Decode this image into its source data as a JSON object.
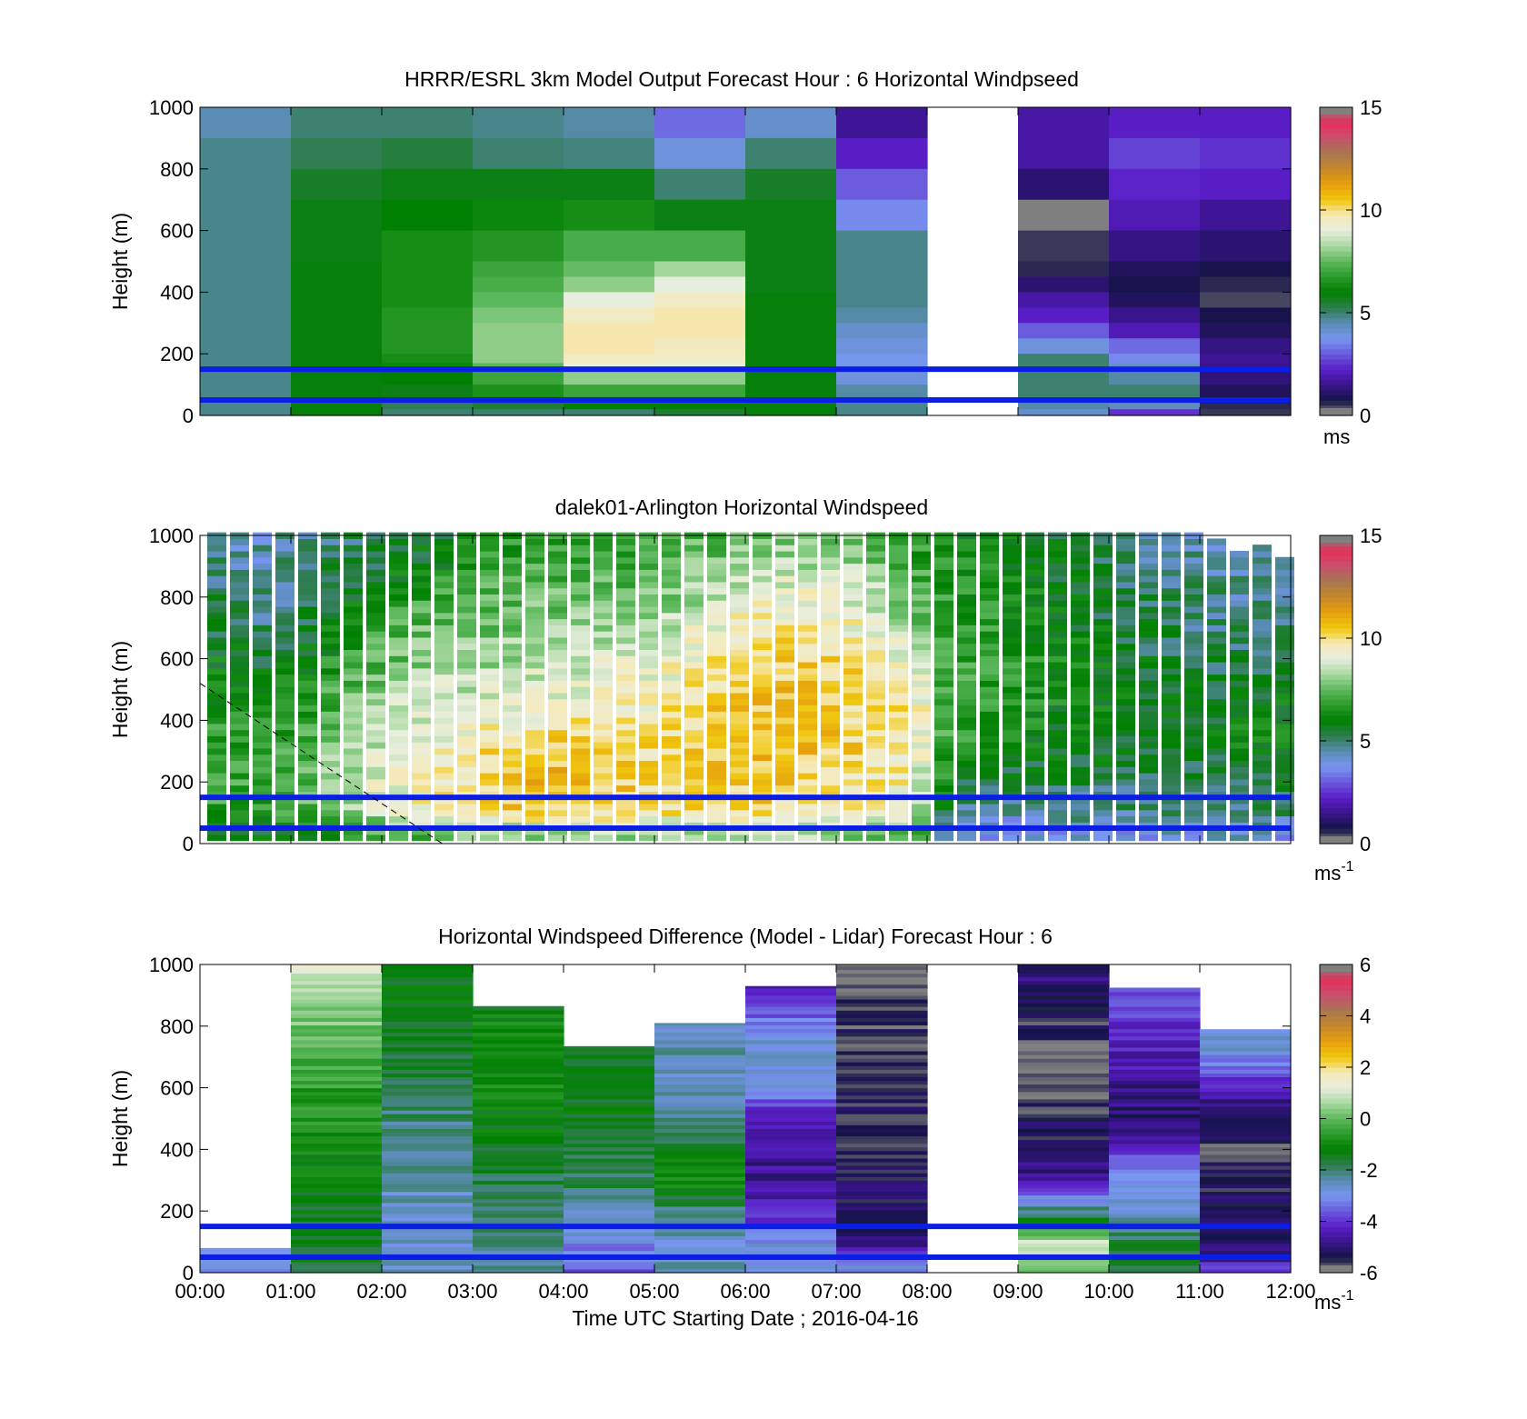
{
  "colors": {
    "ref_line": "#0a1ee6",
    "colormap": [
      "#7f7f7f",
      "#141446",
      "#3a148c",
      "#5a1ec8",
      "#6a5adc",
      "#7896f0",
      "#5a8cb4",
      "#2e7d4e",
      "#008000",
      "#2a9a2a",
      "#5cb85c",
      "#a8d8a0",
      "#e8eedd",
      "#f5e9b8",
      "#f0c810",
      "#e6a00c",
      "#c88828",
      "#a67850",
      "#c8506e",
      "#e6305a",
      "#808080"
    ]
  },
  "time_axis": {
    "ticks": [
      "00:00",
      "01:00",
      "02:00",
      "03:00",
      "04:00",
      "05:00",
      "06:00",
      "07:00",
      "08:00",
      "09:00",
      "10:00",
      "11:00",
      "12:00"
    ],
    "xlabel": "Time UTC  Starting Date ; 2016-04-16"
  },
  "chart_data": [
    {
      "type": "heatmap",
      "title": "HRRR/ESRL 3km Model Output   Forecast Hour : 6 Horizontal Windpseed",
      "ylabel": "Height (m)",
      "xlim": [
        "00:00",
        "12:00"
      ],
      "ylim": [
        0,
        1000
      ],
      "yticks": [
        "0",
        "200",
        "400",
        "600",
        "800",
        "1000"
      ],
      "colorbar": {
        "range": [
          0,
          15
        ],
        "ticks": [
          "0",
          "5",
          "10",
          "15"
        ],
        "unit_label": "ms"
      },
      "reference_lines_m": [
        150,
        50
      ],
      "rows_heights_m": [
        1000,
        900,
        800,
        700,
        600,
        500,
        450,
        400,
        350,
        300,
        250,
        200,
        170,
        150,
        100,
        60,
        40,
        20
      ],
      "columns": [
        {
          "time": "00:00-01:00",
          "speeds": [
            4.5,
            4.8,
            4.8,
            4.8,
            4.8,
            4.8,
            4.8,
            4.8,
            4.8,
            4.8,
            4.8,
            4.8,
            4.8,
            4.8,
            4.8,
            4.8,
            4.8,
            4.8
          ]
        },
        {
          "time": "01:00-02:00",
          "speeds": [
            5.0,
            5.2,
            5.6,
            5.8,
            5.8,
            5.9,
            5.9,
            5.9,
            5.9,
            5.9,
            5.9,
            5.9,
            5.9,
            5.9,
            5.9,
            5.9,
            5.9,
            5.9
          ]
        },
        {
          "time": "02:00-03:00",
          "speeds": [
            5.0,
            5.4,
            5.8,
            6.0,
            6.4,
            6.4,
            6.4,
            6.4,
            6.6,
            6.6,
            6.6,
            6.4,
            6.2,
            6.0,
            5.8,
            5.8,
            5.2,
            5.0
          ]
        },
        {
          "time": "03:00-04:00",
          "speeds": [
            4.8,
            5.0,
            5.8,
            6.2,
            6.6,
            7.0,
            7.2,
            7.5,
            7.8,
            8.0,
            8.0,
            8.0,
            7.5,
            7.0,
            6.5,
            6.0,
            5.5,
            5.0
          ]
        },
        {
          "time": "04:00-05:00",
          "speeds": [
            4.6,
            4.9,
            5.8,
            6.4,
            7.2,
            7.6,
            8.0,
            9.0,
            9.5,
            9.8,
            9.8,
            9.5,
            9.0,
            8.0,
            7.0,
            6.5,
            6.0,
            5.0
          ]
        },
        {
          "time": "05:00-06:00",
          "speeds": [
            3.2,
            4.0,
            5.0,
            5.8,
            7.2,
            8.2,
            9.0,
            9.5,
            9.8,
            9.8,
            9.6,
            9.4,
            9.0,
            8.0,
            7.0,
            6.5,
            6.0,
            5.5
          ]
        },
        {
          "time": "06:00-07:00",
          "speeds": [
            4.2,
            5.0,
            5.6,
            5.8,
            5.8,
            5.8,
            5.8,
            5.9,
            5.9,
            5.9,
            5.9,
            5.9,
            5.9,
            5.9,
            5.9,
            5.9,
            5.9,
            5.9
          ]
        },
        {
          "time": "07:00-08:00",
          "speeds": [
            1.6,
            2.2,
            3.0,
            3.6,
            4.8,
            4.8,
            4.8,
            4.8,
            4.6,
            4.2,
            4.0,
            3.8,
            3.8,
            4.0,
            4.6,
            4.8,
            4.8,
            4.8
          ]
        },
        {
          "time": "08:00-09:00",
          "speeds": null
        },
        {
          "time": "09:00-10:00",
          "speeds": [
            1.8,
            1.8,
            1.2,
            0.0,
            0.5,
            0.6,
            1.2,
            1.8,
            2.2,
            3.0,
            4.0,
            5.0,
            5.0,
            5.0,
            5.0,
            4.8,
            4.6,
            4.2
          ]
        },
        {
          "time": "10:00-11:00",
          "speeds": [
            2.2,
            2.7,
            2.3,
            2.0,
            1.4,
            1.0,
            0.8,
            1.0,
            1.5,
            2.0,
            3.2,
            3.6,
            4.2,
            4.6,
            5.0,
            4.8,
            4.4,
            2.5
          ]
        },
        {
          "time": "11:00-12:00",
          "speeds": [
            2.2,
            2.5,
            2.2,
            1.6,
            1.2,
            0.8,
            0.6,
            0.4,
            0.8,
            1.0,
            1.4,
            1.6,
            1.5,
            1.3,
            1.0,
            0.8,
            0.6,
            0.5
          ]
        }
      ]
    },
    {
      "type": "heatmap",
      "title": "dalek01-Arlington  Horizontal Windspeed",
      "ylabel": "Height (m)",
      "xlim": [
        "00:00",
        "12:00"
      ],
      "ylim": [
        0,
        1000
      ],
      "yticks": [
        "0",
        "200",
        "400",
        "600",
        "800",
        "1000"
      ],
      "colorbar": {
        "range": [
          0,
          15
        ],
        "ticks": [
          "0",
          "5",
          "10",
          "15"
        ],
        "unit_label": "ms",
        "unit_exponent": "-1"
      },
      "reference_lines_m": [
        150,
        50
      ],
      "annotation": "dashed diagonal line from (00:00, 520 m) to (02:40, 0 m)",
      "time_step_minutes": 15,
      "top_of_data_m": [
        1000,
        1000,
        1000,
        1000,
        1000,
        1000,
        1000,
        1000,
        1000,
        1000,
        1000,
        1000,
        1000,
        1000,
        1000,
        1000,
        1000,
        1000,
        1000,
        1000,
        1000,
        1000,
        1000,
        1000,
        1000,
        1000,
        1000,
        1000,
        1000,
        1000,
        1000,
        1000,
        1000,
        1000,
        1000,
        1000,
        1000,
        1000,
        1000,
        1000,
        1000,
        1000,
        1000,
        1000,
        980,
        950,
        960,
        930
      ],
      "profile_nodes_m": [
        20,
        100,
        200,
        300,
        400,
        500,
        600,
        700,
        800,
        900,
        1000
      ],
      "profile_keyframes": [
        {
          "time": "00:00",
          "speeds": [
            5.5,
            7.0,
            7.5,
            7.2,
            6.5,
            6.0,
            6.0,
            5.6,
            5.2,
            5.0,
            4.8
          ]
        },
        {
          "time": "00:30",
          "speeds": [
            5.5,
            6.5,
            6.8,
            6.8,
            6.4,
            6.0,
            5.7,
            5.0,
            4.6,
            4.4,
            4.4
          ]
        },
        {
          "time": "01:00",
          "speeds": [
            5.8,
            7.0,
            7.0,
            7.0,
            6.5,
            6.3,
            5.8,
            5.2,
            4.8,
            4.6,
            4.8
          ]
        },
        {
          "time": "01:30",
          "speeds": [
            6.5,
            7.8,
            8.4,
            8.0,
            7.5,
            7.2,
            6.6,
            6.0,
            5.6,
            5.3,
            5.0
          ]
        },
        {
          "time": "02:00",
          "speeds": [
            7.0,
            9.0,
            9.2,
            9.0,
            8.5,
            8.0,
            7.5,
            7.0,
            6.2,
            5.7,
            5.4
          ]
        },
        {
          "time": "02:30",
          "speeds": [
            7.5,
            9.5,
            9.7,
            9.5,
            9.0,
            8.5,
            8.0,
            7.6,
            6.8,
            6.0,
            5.6
          ]
        },
        {
          "time": "03:00",
          "speeds": [
            7.8,
            9.8,
            10.0,
            9.8,
            9.2,
            8.6,
            8.0,
            7.7,
            7.2,
            6.8,
            6.2
          ]
        },
        {
          "time": "03:30",
          "speeds": [
            7.8,
            10.4,
            10.8,
            10.2,
            9.6,
            9.0,
            8.4,
            7.8,
            7.4,
            7.0,
            6.5
          ]
        },
        {
          "time": "04:00",
          "speeds": [
            7.8,
            10.6,
            11.0,
            10.4,
            9.7,
            9.0,
            8.5,
            7.9,
            7.5,
            7.2,
            6.8
          ]
        },
        {
          "time": "04:30",
          "speeds": [
            8.0,
            10.3,
            10.5,
            10.3,
            9.8,
            9.2,
            8.7,
            8.0,
            7.6,
            7.2,
            6.8
          ]
        },
        {
          "time": "05:00",
          "speeds": [
            8.0,
            10.0,
            10.0,
            10.0,
            9.8,
            9.4,
            9.0,
            8.5,
            7.8,
            7.4,
            6.8
          ]
        },
        {
          "time": "05:30",
          "speeds": [
            8.2,
            10.2,
            10.5,
            10.4,
            10.2,
            10.0,
            9.6,
            9.0,
            8.4,
            7.8,
            7.2
          ]
        },
        {
          "time": "06:00",
          "speeds": [
            8.2,
            10.3,
            10.5,
            10.6,
            10.7,
            10.4,
            10.0,
            9.6,
            9.0,
            8.2,
            7.6
          ]
        },
        {
          "time": "06:30",
          "speeds": [
            8.2,
            10.0,
            10.3,
            10.6,
            10.7,
            10.5,
            10.2,
            9.8,
            9.2,
            8.4,
            7.8
          ]
        },
        {
          "time": "07:00",
          "speeds": [
            8.0,
            9.8,
            10.0,
            10.3,
            10.4,
            10.3,
            10.0,
            9.6,
            9.0,
            8.2,
            7.6
          ]
        },
        {
          "time": "07:30",
          "speeds": [
            7.5,
            9.5,
            9.8,
            10.0,
            10.0,
            9.8,
            9.4,
            8.8,
            8.2,
            7.6,
            7.0
          ]
        },
        {
          "time": "07:50",
          "speeds": [
            7.0,
            8.8,
            9.2,
            9.5,
            9.6,
            9.2,
            8.8,
            8.0,
            7.4,
            7.0,
            6.5
          ]
        },
        {
          "time": "08:10",
          "speeds": [
            3.8,
            4.8,
            6.0,
            6.8,
            7.0,
            7.0,
            7.0,
            6.8,
            6.6,
            6.4,
            6.2
          ]
        },
        {
          "time": "08:45",
          "speeds": [
            3.6,
            4.6,
            5.4,
            6.2,
            6.6,
            6.8,
            6.8,
            6.6,
            6.4,
            6.2,
            6.0
          ]
        },
        {
          "time": "09:30",
          "speeds": [
            3.8,
            4.8,
            5.4,
            5.8,
            6.0,
            6.2,
            6.2,
            6.0,
            5.8,
            5.6,
            5.4
          ]
        },
        {
          "time": "10:30",
          "speeds": [
            4.0,
            4.8,
            5.2,
            5.6,
            5.8,
            5.7,
            5.4,
            5.2,
            5.0,
            4.8,
            4.6
          ]
        },
        {
          "time": "11:30",
          "speeds": [
            4.0,
            5.0,
            5.6,
            6.0,
            6.0,
            5.6,
            5.2,
            4.8,
            4.6,
            4.4,
            4.2
          ]
        },
        {
          "time": "12:00",
          "speeds": [
            4.0,
            5.0,
            5.6,
            6.0,
            6.0,
            5.6,
            5.2,
            4.8,
            4.6,
            4.4,
            4.2
          ]
        }
      ]
    },
    {
      "type": "heatmap",
      "title": "Horizontal Windspeed Difference (Model - Lidar) Forecast Hour : 6",
      "ylabel": "Height (m)",
      "xlabel": "Time UTC  Starting Date ; 2016-04-16",
      "xlim": [
        "00:00",
        "12:00"
      ],
      "ylim": [
        0,
        1000
      ],
      "yticks": [
        "0",
        "200",
        "400",
        "600",
        "800",
        "1000"
      ],
      "colorbar": {
        "range": [
          -6,
          6
        ],
        "ticks": [
          "-6",
          "-4",
          "-2",
          "0",
          "2",
          "4",
          "6"
        ],
        "unit_label": "ms",
        "unit_exponent": "-1"
      },
      "reference_lines_m": [
        150,
        50
      ],
      "profile_nodes_m": [
        20,
        100,
        200,
        300,
        400,
        500,
        600,
        700,
        800,
        900,
        1000
      ],
      "columns": [
        {
          "time": "00:00-01:00",
          "top_m": 80,
          "diffs": [
            -2.8,
            -2.8,
            null,
            null,
            null,
            null,
            null,
            null,
            null,
            null,
            null
          ]
        },
        {
          "time": "01:00-02:00",
          "top_m": 1000,
          "diffs": [
            -1.5,
            -1.6,
            -1.4,
            -1.2,
            -1.0,
            -0.8,
            -0.6,
            -0.2,
            0.1,
            0.6,
            1.0
          ]
        },
        {
          "time": "02:00-03:00",
          "top_m": 1000,
          "diffs": [
            -2.6,
            -2.6,
            -2.6,
            -2.4,
            -2.2,
            -2.0,
            -1.8,
            -1.6,
            -1.5,
            -1.4,
            -1.4
          ]
        },
        {
          "time": "03:00-04:00",
          "top_m": 865,
          "diffs": [
            -2.3,
            -2.2,
            -2.0,
            -1.8,
            -1.4,
            -1.2,
            -1.0,
            -1.0,
            -1.1,
            -1.3,
            -1.5
          ]
        },
        {
          "time": "04:00-05:00",
          "top_m": 735,
          "diffs": [
            -3.6,
            -3.0,
            -2.4,
            -1.8,
            -1.6,
            -1.4,
            -1.4,
            -1.5,
            null,
            null,
            null
          ]
        },
        {
          "time": "05:00-06:00",
          "top_m": 810,
          "diffs": [
            -2.6,
            -2.6,
            -2.0,
            -1.0,
            -1.4,
            -2.0,
            -2.4,
            -2.4,
            -2.6,
            null,
            null
          ]
        },
        {
          "time": "06:00-07:00",
          "top_m": 930,
          "diffs": [
            -3.0,
            -3.0,
            -4.4,
            -4.6,
            -4.8,
            -4.4,
            -3.0,
            -2.6,
            -3.0,
            -4.4,
            -4.8
          ]
        },
        {
          "time": "07:00-08:00",
          "top_m": 1000,
          "diffs": [
            -3.0,
            -4.8,
            -5.2,
            -5.3,
            -5.4,
            -5.4,
            -5.5,
            -5.5,
            -5.6,
            -5.7,
            -6.0
          ]
        },
        {
          "time": "08:00-09:00",
          "top_m": null,
          "diffs": null
        },
        {
          "time": "09:00-10:00",
          "top_m": 1000,
          "diffs": [
            0.5,
            0.8,
            -2.0,
            -4.6,
            -5.2,
            -5.4,
            -6.0,
            -6.0,
            -5.5,
            -5.0,
            -5.0
          ]
        },
        {
          "time": "10:00-11:00",
          "top_m": 925,
          "diffs": [
            -1.6,
            -1.8,
            -2.6,
            -3.0,
            -4.0,
            -5.0,
            -4.8,
            -4.4,
            -4.0,
            -3.6,
            null
          ]
        },
        {
          "time": "11:00-12:00",
          "top_m": 790,
          "diffs": [
            -4.2,
            -5.2,
            -5.0,
            -5.4,
            -5.6,
            -5.2,
            -4.4,
            -3.0,
            -2.6,
            null,
            null
          ]
        }
      ]
    }
  ]
}
